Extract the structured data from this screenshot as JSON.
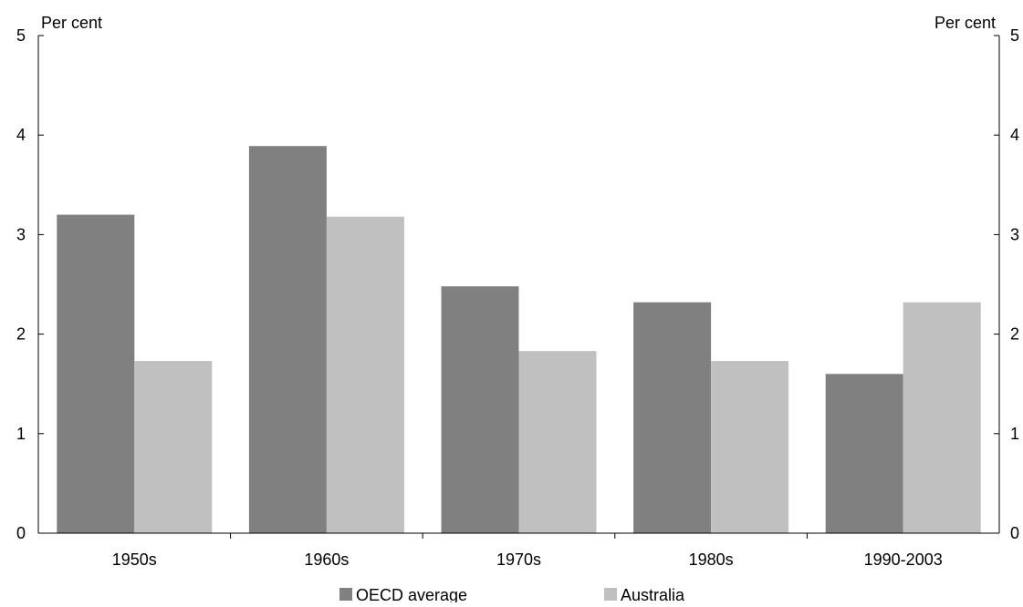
{
  "chart_data": {
    "type": "bar",
    "categories": [
      "1950s",
      "1960s",
      "1970s",
      "1980s",
      "1990-2003"
    ],
    "series": [
      {
        "name": "OECD average",
        "color": "#808080",
        "values": [
          3.2,
          3.89,
          2.48,
          2.32,
          1.6
        ]
      },
      {
        "name": "Australia",
        "color": "#c0c0c0",
        "values": [
          1.73,
          3.18,
          1.83,
          1.73,
          2.32
        ]
      }
    ],
    "y_left_label": "Per cent",
    "y_right_label": "Per cent",
    "ylim": [
      0,
      5
    ],
    "y_ticks": [
      "0",
      "1",
      "2",
      "3",
      "4",
      "5"
    ],
    "grid": false,
    "legend_position": "bottom-center"
  }
}
